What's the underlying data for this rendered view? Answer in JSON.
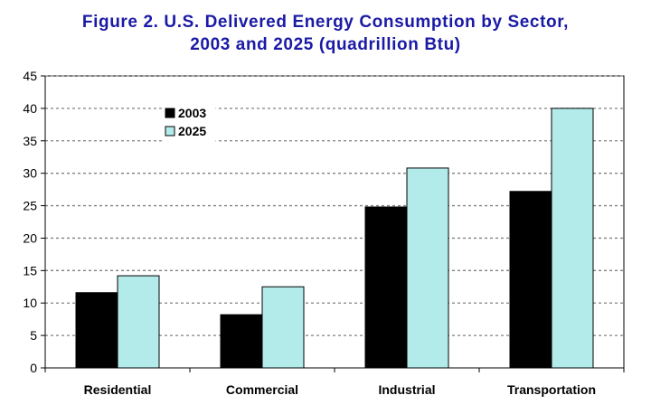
{
  "title_line1": "Figure 2.  U.S. Delivered Energy Consumption by Sector,",
  "title_line2": "2003 and 2025 (quadrillion Btu)",
  "chart_data": {
    "type": "bar",
    "title": "Figure 2.  U.S. Delivered Energy Consumption by Sector, 2003 and 2025 (quadrillion Btu)",
    "categories": [
      "Residential",
      "Commercial",
      "Industrial",
      "Transportation"
    ],
    "series": [
      {
        "name": "2003",
        "values": [
          11.6,
          8.2,
          24.8,
          27.2
        ],
        "color": "#000000"
      },
      {
        "name": "2025",
        "values": [
          14.2,
          12.5,
          30.8,
          40.0
        ],
        "color": "#b3ebeb"
      }
    ],
    "ylim": [
      0,
      45
    ],
    "yticks": [
      0,
      5,
      10,
      15,
      20,
      25,
      30,
      35,
      40,
      45
    ],
    "grid": true,
    "legend_position": "top-left"
  }
}
